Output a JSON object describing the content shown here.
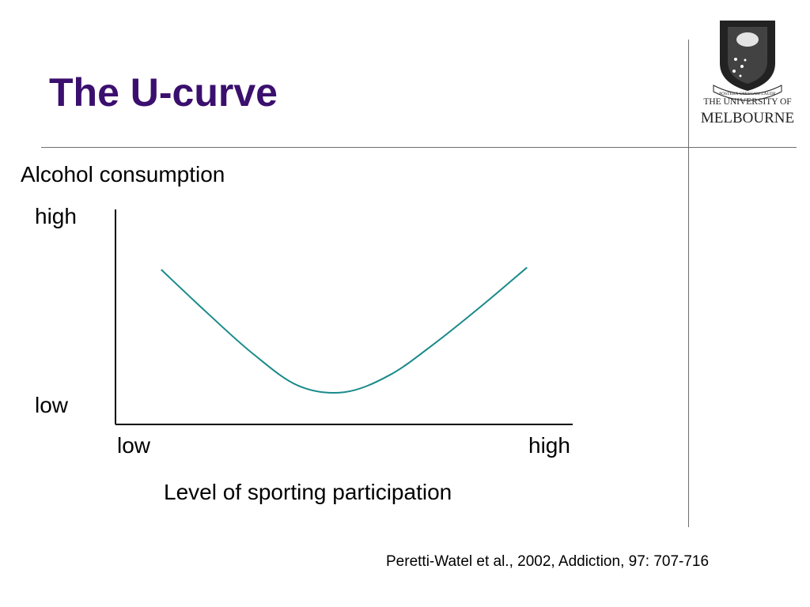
{
  "slide": {
    "title": "The U-curve",
    "citation": "Peretti-Watel et al., 2002, Addiction, 97: 707-716",
    "logo_text": {
      "motto": "POSTERA CRESCAM LAUDE",
      "line1": "THE UNIVERSITY OF",
      "line2": "MELBOURNE"
    }
  },
  "chart_data": {
    "type": "line",
    "ylabel": "Alcohol consumption",
    "xlabel": "Level of sporting participation",
    "x_ticks": [
      "low",
      "high"
    ],
    "y_ticks": [
      "high",
      "low"
    ],
    "curve_color": "#1a8a8a",
    "series": [
      {
        "x": [
          0.1,
          0.2,
          0.3,
          0.4,
          0.5,
          0.6,
          0.7,
          0.8,
          0.9
        ],
        "y": [
          0.72,
          0.52,
          0.33,
          0.18,
          0.15,
          0.23,
          0.38,
          0.55,
          0.73
        ]
      }
    ],
    "xlim": [
      0,
      1
    ],
    "ylim": [
      0,
      1
    ]
  },
  "colors": {
    "title": "#3b0f6e",
    "rules": "#6f6f6f",
    "axis": "#000000"
  }
}
